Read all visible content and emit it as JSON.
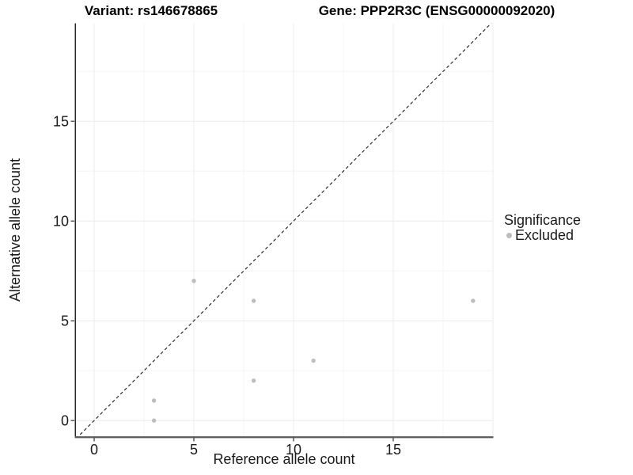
{
  "titles": {
    "variant": "Variant: rs146678865",
    "gene": "Gene: PPP2R3C (ENSG00000092020)"
  },
  "chart_data": {
    "type": "scatter",
    "xlabel": "Reference allele count",
    "ylabel": "Alternative allele count",
    "x_ticks": [
      0,
      5,
      10,
      15
    ],
    "y_ticks": [
      0,
      5,
      10,
      15
    ],
    "x_minor": [
      2.5,
      7.5,
      12.5,
      17.5
    ],
    "y_minor": [
      2.5,
      7.5,
      12.5,
      17.5
    ],
    "x_major_grid": [
      0,
      5,
      10,
      15,
      20
    ],
    "y_major_grid": [
      0,
      5,
      10,
      15
    ],
    "xlim": [
      -0.93,
      20.05
    ],
    "ylim": [
      -0.79,
      19.92
    ],
    "grid": "on",
    "series": [
      {
        "name": "Excluded",
        "color": "#bdbdbd",
        "points": [
          [
            3,
            0
          ],
          [
            3,
            1
          ],
          [
            5,
            7
          ],
          [
            8,
            2
          ],
          [
            8,
            6
          ],
          [
            11,
            3
          ],
          [
            19,
            6
          ]
        ]
      }
    ],
    "identity_line": {
      "equation": "y = x",
      "style": "dashed",
      "color": "#1a1a1a"
    },
    "legend": {
      "position": "right",
      "title": "Significance",
      "items": [
        {
          "label": "Excluded",
          "color": "#bdbdbd"
        }
      ]
    },
    "colors": {
      "major_grid": "#ececec",
      "minor_grid": "#f5f5f5",
      "axis_line_left": "#1a1a1a",
      "axis_line_bottom": "#595959",
      "tick": "#333333",
      "tick_label": "#1a1a1a",
      "point": "#bdbdbd"
    }
  }
}
